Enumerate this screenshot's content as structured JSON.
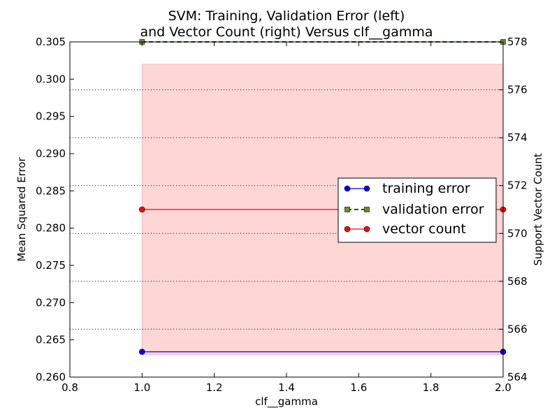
{
  "chart_data": {
    "type": "line",
    "title_line1": "SVM: Training, Validation Error (left)",
    "title_line2": "and Vector Count (right) Versus clf__gamma",
    "xlabel": "clf__gamma",
    "ylabel_left": "Mean Squared Error",
    "ylabel_right": "Support Vector Count",
    "xlim": [
      0.8,
      2.0
    ],
    "ylim_left": [
      0.26,
      0.305
    ],
    "ylim_right": [
      564,
      578
    ],
    "x_ticks": [
      "0.8",
      "1.0",
      "1.2",
      "1.4",
      "1.6",
      "1.8",
      "2.0"
    ],
    "y_left_ticks": [
      "0.260",
      "0.265",
      "0.270",
      "0.275",
      "0.280",
      "0.285",
      "0.290",
      "0.295",
      "0.300",
      "0.305"
    ],
    "y_right_ticks": [
      "564",
      "566",
      "568",
      "570",
      "572",
      "574",
      "576",
      "578"
    ],
    "grid": "dotted horizontal lines at right-axis ticks",
    "legend_position": "center-right",
    "band": {
      "x": [
        1.0,
        2.0
      ],
      "y_low": 0.263,
      "y_high": 0.302,
      "color": "#ffd6d6",
      "axis": "left"
    },
    "series": [
      {
        "name": "training error",
        "axis": "left",
        "x": [
          1.0,
          2.0
        ],
        "values": [
          0.2634,
          0.2634
        ],
        "color": "#0000ff",
        "marker": "circle",
        "linestyle": "solid"
      },
      {
        "name": "validation error",
        "axis": "left",
        "x": [
          1.0,
          2.0
        ],
        "values": [
          0.305,
          0.305
        ],
        "color": "#006400",
        "marker": "square",
        "linestyle": "dashed"
      },
      {
        "name": "vector count",
        "axis": "right",
        "x": [
          1.0,
          2.0
        ],
        "values": [
          571,
          571
        ],
        "color": "#ff0000",
        "marker": "circle",
        "linestyle": "solid"
      }
    ]
  }
}
